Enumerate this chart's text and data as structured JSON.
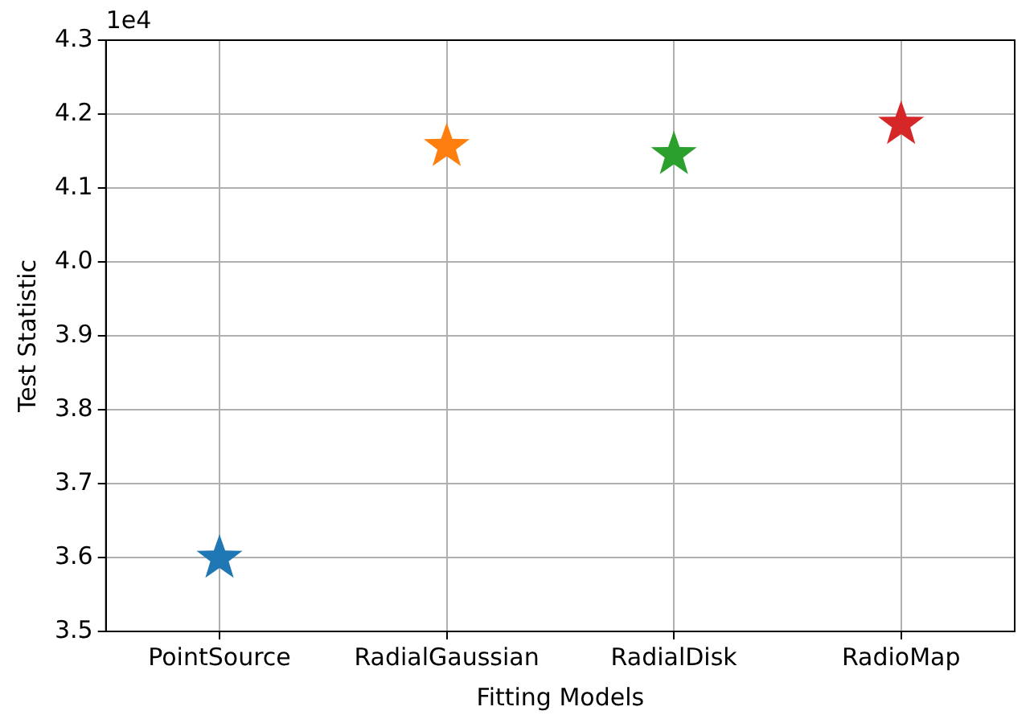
{
  "chart_data": {
    "type": "scatter",
    "xlabel": "Fitting Models",
    "ylabel": "Test Statistic",
    "annotations": [
      "1e4"
    ],
    "categories": [
      "PointSource",
      "RadialGaussian",
      "RadialDisk",
      "RadioMap"
    ],
    "values": [
      3.599,
      4.156,
      4.145,
      4.186
    ],
    "colors": [
      "#1f77b4",
      "#ff7f0e",
      "#2ca02c",
      "#d62728"
    ],
    "ylim": [
      3.5,
      4.3
    ],
    "yticks": [
      3.5,
      3.6,
      3.7,
      3.8,
      3.9,
      {
        "value": 4,
        "label": "4.0"
      },
      4.1,
      4.2,
      4.3
    ],
    "grid": true,
    "marker": "star",
    "legend": false
  }
}
